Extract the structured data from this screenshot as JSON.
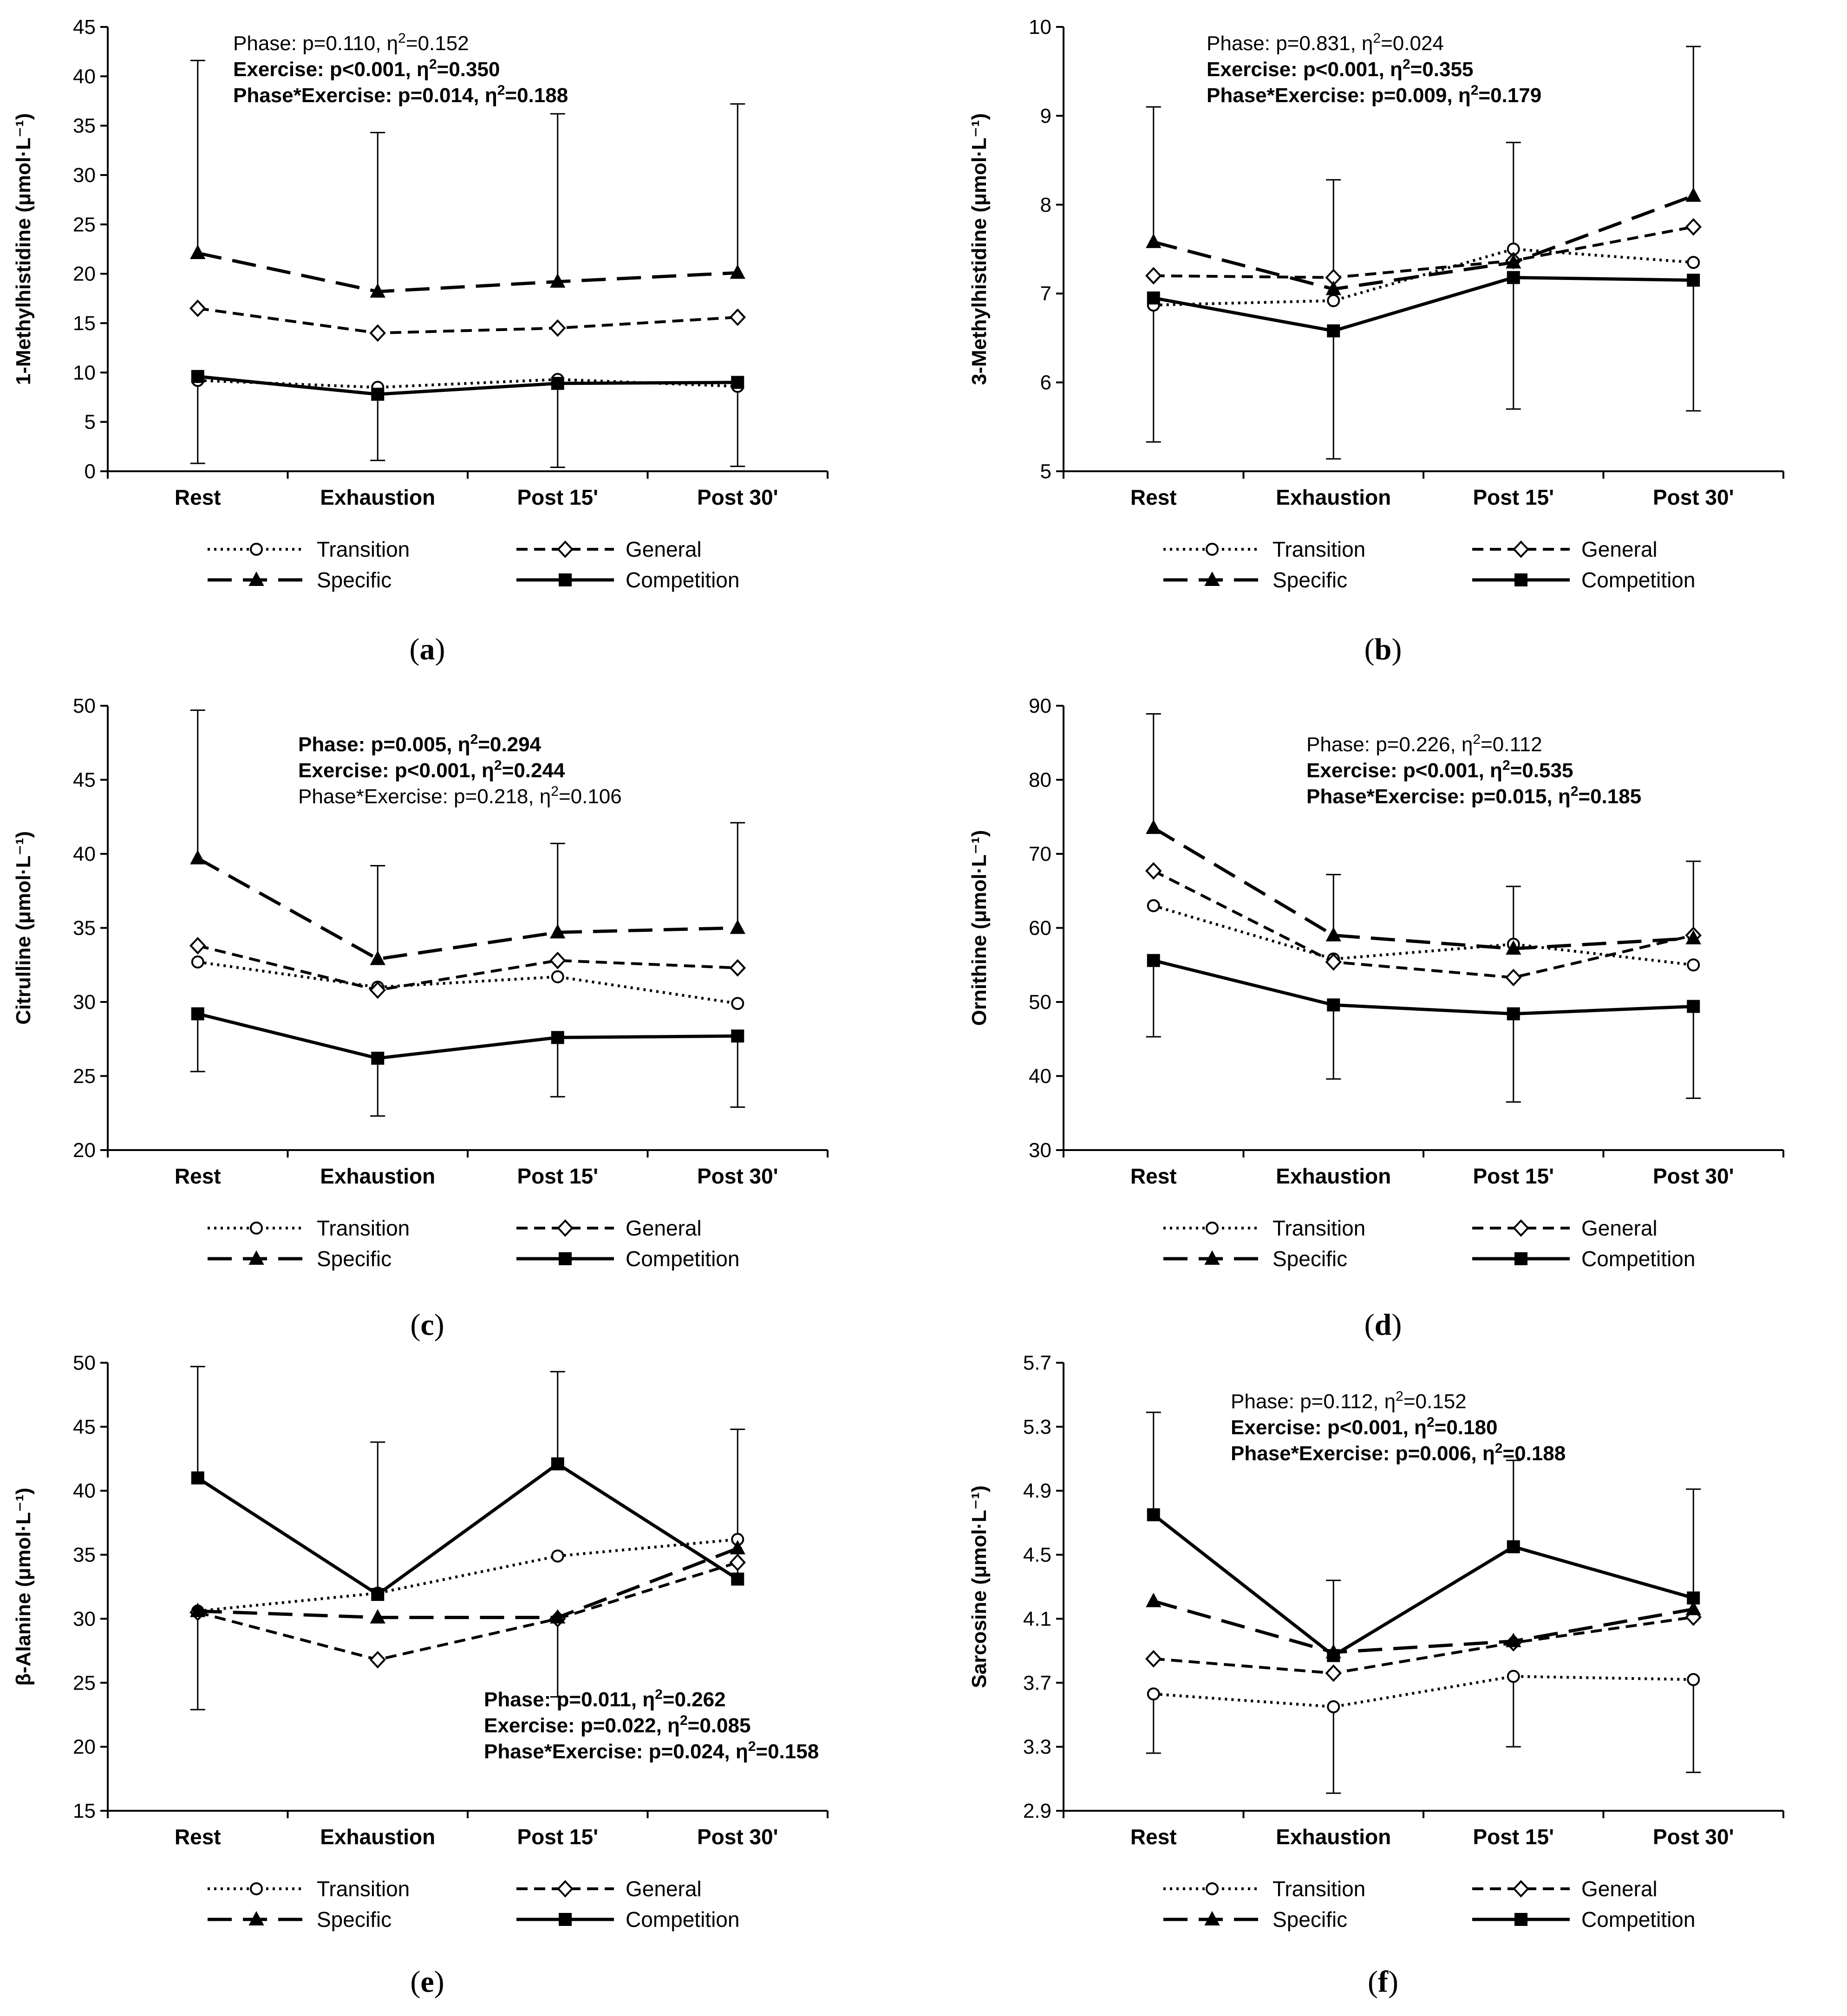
{
  "figure": {
    "legend_labels": {
      "transition": "Transition",
      "general": "General",
      "specific": "Specific",
      "competition": "Competition"
    }
  },
  "chart_data": [
    {
      "panel": "a",
      "panel_label": "a",
      "type": "line",
      "categories": [
        "Rest",
        "Exhaustion",
        "Post 15'",
        "Post 30'"
      ],
      "ylabel": "1-Methylhistidine (μmol·L⁻¹)",
      "ylim": [
        0,
        45
      ],
      "yticks": [
        0,
        5,
        10,
        15,
        20,
        25,
        30,
        35,
        40,
        45
      ],
      "tick_decimals": 0,
      "stats": [
        {
          "text": "Phase: p=0.110, η",
          "sup": "2",
          "tail": "=0.152",
          "bold": false
        },
        {
          "text": "Exercise: p<0.001, η",
          "sup": "2",
          "tail": "=0.350",
          "bold": true
        },
        {
          "text": "Phase*Exercise: p=0.014, η",
          "sup": "2",
          "tail": "=0.188",
          "bold": true
        }
      ],
      "series": [
        {
          "name": "Transition",
          "values": [
            9.2,
            8.5,
            9.3,
            8.6
          ],
          "errors": [
            null,
            null,
            null,
            null
          ]
        },
        {
          "name": "General",
          "values": [
            16.5,
            14.0,
            14.5,
            15.6
          ],
          "errors": [
            null,
            null,
            null,
            null
          ]
        },
        {
          "name": "Specific",
          "values": [
            22.1,
            18.2,
            19.2,
            20.1
          ],
          "errors": [
            41.6,
            34.3,
            36.2,
            37.2
          ]
        },
        {
          "name": "Competition",
          "values": [
            9.6,
            7.8,
            8.9,
            9.0
          ],
          "errors": [
            0.8,
            1.1,
            0.4,
            0.5
          ]
        }
      ]
    },
    {
      "panel": "b",
      "panel_label": "b",
      "type": "line",
      "categories": [
        "Rest",
        "Exhaustion",
        "Post 15'",
        "Post 30'"
      ],
      "ylabel": "3-Methylhistidine (μmol·L⁻¹)",
      "ylim": [
        5,
        10
      ],
      "yticks": [
        5,
        6,
        7,
        8,
        9,
        10
      ],
      "tick_decimals": 0,
      "stats": [
        {
          "text": "Phase: p=0.831, η",
          "sup": "2",
          "tail": "=0.024",
          "bold": false
        },
        {
          "text": "Exercise: p<0.001, η",
          "sup": "2",
          "tail": "=0.355",
          "bold": true
        },
        {
          "text": "Phase*Exercise: p=0.009, η",
          "sup": "2",
          "tail": "=0.179",
          "bold": true
        }
      ],
      "series": [
        {
          "name": "Transition",
          "values": [
            6.87,
            6.92,
            7.5,
            7.35
          ],
          "errors": [
            null,
            null,
            null,
            null
          ]
        },
        {
          "name": "General",
          "values": [
            7.2,
            7.18,
            7.37,
            7.75
          ],
          "errors": [
            null,
            null,
            null,
            null
          ]
        },
        {
          "name": "Specific",
          "values": [
            7.58,
            7.05,
            7.35,
            8.1
          ],
          "errors": [
            9.1,
            8.28,
            8.7,
            9.78
          ]
        },
        {
          "name": "Competition",
          "values": [
            6.95,
            6.58,
            7.18,
            7.15
          ],
          "errors": [
            5.33,
            5.14,
            5.7,
            5.68
          ]
        }
      ]
    },
    {
      "panel": "c",
      "panel_label": "c",
      "type": "line",
      "categories": [
        "Rest",
        "Exhaustion",
        "Post 15'",
        "Post 30'"
      ],
      "ylabel": "Citrulline (μmol·L⁻¹)",
      "ylim": [
        20,
        50
      ],
      "yticks": [
        20,
        25,
        30,
        35,
        40,
        45,
        50
      ],
      "tick_decimals": 0,
      "stats": [
        {
          "text": "Phase: p=0.005, η",
          "sup": "2",
          "tail": "=0.294",
          "bold": true
        },
        {
          "text": "Exercise: p<0.001, η",
          "sup": "2",
          "tail": "=0.244",
          "bold": true
        },
        {
          "text": "Phase*Exercise: p=0.218, η",
          "sup": "2",
          "tail": "=0.106",
          "bold": false
        }
      ],
      "series": [
        {
          "name": "Transition",
          "values": [
            32.7,
            31.0,
            31.7,
            29.9
          ],
          "errors": [
            null,
            null,
            null,
            null
          ]
        },
        {
          "name": "General",
          "values": [
            33.8,
            30.8,
            32.8,
            32.3
          ],
          "errors": [
            null,
            null,
            null,
            null
          ]
        },
        {
          "name": "Specific",
          "values": [
            39.7,
            32.9,
            34.7,
            35.0
          ],
          "errors": [
            49.7,
            39.2,
            40.7,
            42.1
          ]
        },
        {
          "name": "Competition",
          "values": [
            29.2,
            26.2,
            27.6,
            27.7
          ],
          "errors": [
            25.3,
            22.3,
            23.6,
            22.9
          ]
        }
      ]
    },
    {
      "panel": "d",
      "panel_label": "d",
      "type": "line",
      "categories": [
        "Rest",
        "Exhaustion",
        "Post 15'",
        "Post 30'"
      ],
      "ylabel": "Ornithine (μmol·L⁻¹)",
      "ylim": [
        30,
        90
      ],
      "yticks": [
        30,
        40,
        50,
        60,
        70,
        80,
        90
      ],
      "tick_decimals": 0,
      "stats": [
        {
          "text": "Phase: p=0.226, η",
          "sup": "2",
          "tail": "=0.112",
          "bold": false
        },
        {
          "text": "Exercise: p<0.001, η",
          "sup": "2",
          "tail": "=0.535",
          "bold": true
        },
        {
          "text": "Phase*Exercise: p=0.015, η",
          "sup": "2",
          "tail": "=0.185",
          "bold": true
        }
      ],
      "series": [
        {
          "name": "Transition",
          "values": [
            63.0,
            55.8,
            57.8,
            55.0
          ],
          "errors": [
            null,
            null,
            null,
            null
          ]
        },
        {
          "name": "General",
          "values": [
            67.7,
            55.4,
            53.3,
            59.0
          ],
          "errors": [
            null,
            null,
            null,
            null
          ]
        },
        {
          "name": "Specific",
          "values": [
            73.5,
            59.0,
            57.2,
            58.6
          ],
          "errors": [
            88.9,
            67.2,
            65.6,
            69.0
          ]
        },
        {
          "name": "Competition",
          "values": [
            55.6,
            49.6,
            48.4,
            49.4
          ],
          "errors": [
            45.3,
            39.6,
            36.5,
            37.0
          ]
        }
      ]
    },
    {
      "panel": "e",
      "panel_label": "e",
      "type": "line",
      "categories": [
        "Rest",
        "Exhaustion",
        "Post 15'",
        "Post 30'"
      ],
      "ylabel": "β-Alanine (μmol·L⁻¹)",
      "ylim": [
        15,
        50
      ],
      "yticks": [
        15,
        20,
        25,
        30,
        35,
        40,
        45,
        50
      ],
      "tick_decimals": 0,
      "stats": [
        {
          "text": "Phase: p=0.011, η",
          "sup": "2",
          "tail": "=0.262",
          "bold": true
        },
        {
          "text": "Exercise: p=0.022, η",
          "sup": "2",
          "tail": "=0.085",
          "bold": true
        },
        {
          "text": "Phase*Exercise: p=0.024, η",
          "sup": "2",
          "tail": "=0.158",
          "bold": true
        }
      ],
      "series": [
        {
          "name": "Transition",
          "values": [
            30.6,
            32.0,
            34.9,
            36.2
          ],
          "errors": [
            null,
            null,
            null,
            null
          ]
        },
        {
          "name": "General",
          "values": [
            30.5,
            26.8,
            30.0,
            34.4
          ],
          "errors": [
            22.9,
            null,
            null,
            null
          ]
        },
        {
          "name": "Specific",
          "values": [
            30.6,
            30.1,
            30.1,
            35.5
          ],
          "errors": [
            null,
            null,
            23.9,
            null
          ]
        },
        {
          "name": "Competition",
          "values": [
            41.0,
            31.9,
            42.1,
            33.1
          ],
          "errors": [
            49.7,
            43.8,
            49.3,
            44.8
          ]
        }
      ]
    },
    {
      "panel": "f",
      "panel_label": "f",
      "type": "line",
      "categories": [
        "Rest",
        "Exhaustion",
        "Post 15'",
        "Post 30'"
      ],
      "ylabel": "Sarcosine (μmol·L⁻¹)",
      "ylim": [
        2.9,
        5.7
      ],
      "yticks": [
        2.9,
        3.3,
        3.7,
        4.1,
        4.5,
        4.9,
        5.3,
        5.7
      ],
      "tick_decimals": 1,
      "stats": [
        {
          "text": "Phase: p=0.112, η",
          "sup": "2",
          "tail": "=0.152",
          "bold": false
        },
        {
          "text": "Exercise: p<0.001, η",
          "sup": "2",
          "tail": "=0.180",
          "bold": true
        },
        {
          "text": "Phase*Exercise: p=0.006, η",
          "sup": "2",
          "tail": "=0.188",
          "bold": true
        }
      ],
      "series": [
        {
          "name": "Transition",
          "values": [
            3.63,
            3.55,
            3.74,
            3.72
          ],
          "errors": [
            3.26,
            3.01,
            3.3,
            3.14
          ]
        },
        {
          "name": "General",
          "values": [
            3.85,
            3.76,
            3.95,
            4.11
          ],
          "errors": [
            null,
            null,
            null,
            null
          ]
        },
        {
          "name": "Specific",
          "values": [
            4.21,
            3.89,
            3.96,
            4.16
          ],
          "errors": [
            null,
            null,
            null,
            null
          ]
        },
        {
          "name": "Competition",
          "values": [
            4.75,
            3.87,
            4.55,
            4.23
          ],
          "errors": [
            5.39,
            4.34,
            5.09,
            4.91
          ]
        }
      ]
    }
  ]
}
